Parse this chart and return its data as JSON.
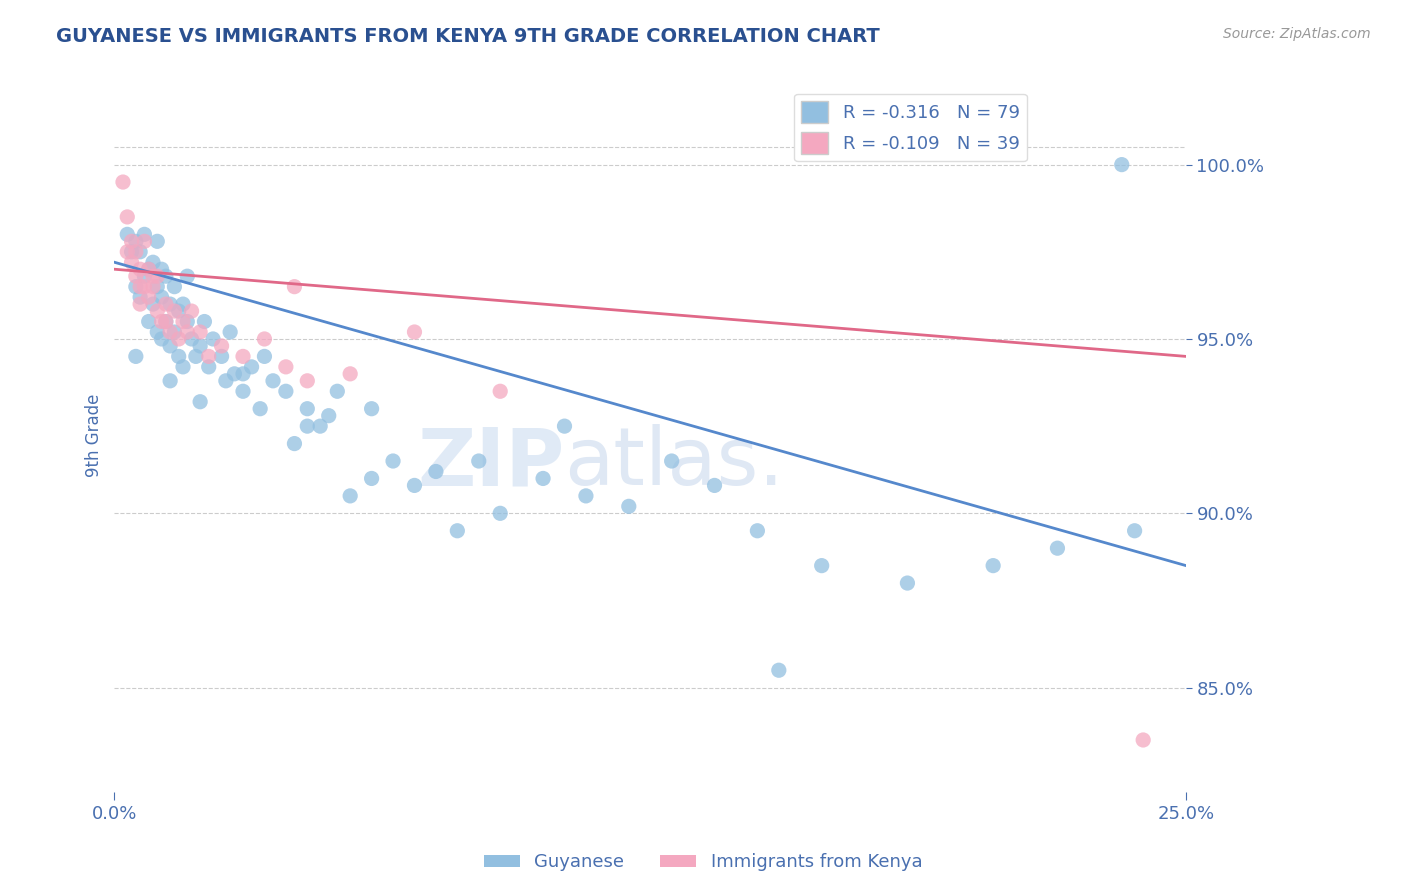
{
  "title": "GUYANESE VS IMMIGRANTS FROM KENYA 9TH GRADE CORRELATION CHART",
  "source": "Source: ZipAtlas.com",
  "ylabel": "9th Grade",
  "xlim": [
    0.0,
    25.0
  ],
  "ylim": [
    82.0,
    102.5
  ],
  "yticks": [
    85.0,
    90.0,
    95.0,
    100.0
  ],
  "ytick_labels": [
    "85.0%",
    "90.0%",
    "95.0%",
    "100.0%"
  ],
  "blue_color": "#92bfe0",
  "pink_color": "#f4a8c0",
  "blue_line_color": "#5588cc",
  "pink_line_color": "#e06888",
  "r_blue": -0.316,
  "n_blue": 79,
  "r_pink": -0.109,
  "n_pink": 39,
  "background_color": "#ffffff",
  "grid_color": "#cccccc",
  "title_color": "#2a5090",
  "axis_color": "#4a70b0",
  "blue_trend_x0": 0.0,
  "blue_trend_y0": 97.2,
  "blue_trend_x1": 25.0,
  "blue_trend_y1": 88.5,
  "pink_trend_x0": 0.0,
  "pink_trend_y0": 97.0,
  "pink_trend_x1": 25.0,
  "pink_trend_y1": 94.5,
  "blue_x": [
    0.3,
    0.4,
    0.5,
    0.5,
    0.6,
    0.6,
    0.7,
    0.7,
    0.8,
    0.8,
    0.9,
    0.9,
    1.0,
    1.0,
    1.0,
    1.1,
    1.1,
    1.1,
    1.2,
    1.2,
    1.3,
    1.3,
    1.4,
    1.4,
    1.5,
    1.5,
    1.6,
    1.6,
    1.7,
    1.7,
    1.8,
    1.9,
    2.0,
    2.1,
    2.2,
    2.3,
    2.5,
    2.6,
    2.7,
    2.8,
    3.0,
    3.2,
    3.4,
    3.5,
    3.7,
    4.0,
    4.2,
    4.5,
    4.8,
    5.0,
    5.2,
    5.5,
    6.0,
    6.5,
    7.0,
    7.5,
    8.0,
    9.0,
    10.0,
    11.0,
    12.0,
    13.0,
    14.0,
    15.0,
    16.5,
    18.5,
    20.5,
    22.0,
    23.5,
    0.5,
    1.3,
    2.0,
    3.0,
    4.5,
    6.0,
    8.5,
    10.5,
    15.5,
    23.8
  ],
  "blue_y": [
    98.0,
    97.5,
    96.5,
    97.8,
    96.2,
    97.5,
    96.8,
    98.0,
    95.5,
    97.0,
    96.0,
    97.2,
    95.2,
    96.5,
    97.8,
    95.0,
    96.2,
    97.0,
    95.5,
    96.8,
    94.8,
    96.0,
    95.2,
    96.5,
    94.5,
    95.8,
    94.2,
    96.0,
    95.5,
    96.8,
    95.0,
    94.5,
    94.8,
    95.5,
    94.2,
    95.0,
    94.5,
    93.8,
    95.2,
    94.0,
    93.5,
    94.2,
    93.0,
    94.5,
    93.8,
    93.5,
    92.0,
    93.0,
    92.5,
    92.8,
    93.5,
    90.5,
    91.0,
    91.5,
    90.8,
    91.2,
    89.5,
    90.0,
    91.0,
    90.5,
    90.2,
    91.5,
    90.8,
    89.5,
    88.5,
    88.0,
    88.5,
    89.0,
    100.0,
    94.5,
    93.8,
    93.2,
    94.0,
    92.5,
    93.0,
    91.5,
    92.5,
    85.5,
    89.5
  ],
  "pink_x": [
    0.2,
    0.3,
    0.3,
    0.4,
    0.5,
    0.5,
    0.6,
    0.6,
    0.7,
    0.7,
    0.8,
    0.8,
    0.9,
    1.0,
    1.0,
    1.1,
    1.2,
    1.3,
    1.4,
    1.5,
    1.6,
    1.8,
    2.0,
    2.5,
    3.0,
    3.5,
    4.0,
    4.5,
    5.5,
    7.0,
    9.0,
    0.4,
    0.6,
    0.9,
    1.2,
    1.7,
    2.2,
    4.2,
    24.0
  ],
  "pink_y": [
    99.5,
    97.5,
    98.5,
    97.2,
    96.8,
    97.5,
    96.0,
    97.0,
    96.5,
    97.8,
    96.2,
    97.0,
    96.5,
    95.8,
    96.8,
    95.5,
    96.0,
    95.2,
    95.8,
    95.0,
    95.5,
    95.8,
    95.2,
    94.8,
    94.5,
    95.0,
    94.2,
    93.8,
    94.0,
    95.2,
    93.5,
    97.8,
    96.5,
    96.8,
    95.5,
    95.2,
    94.5,
    96.5,
    83.5
  ]
}
